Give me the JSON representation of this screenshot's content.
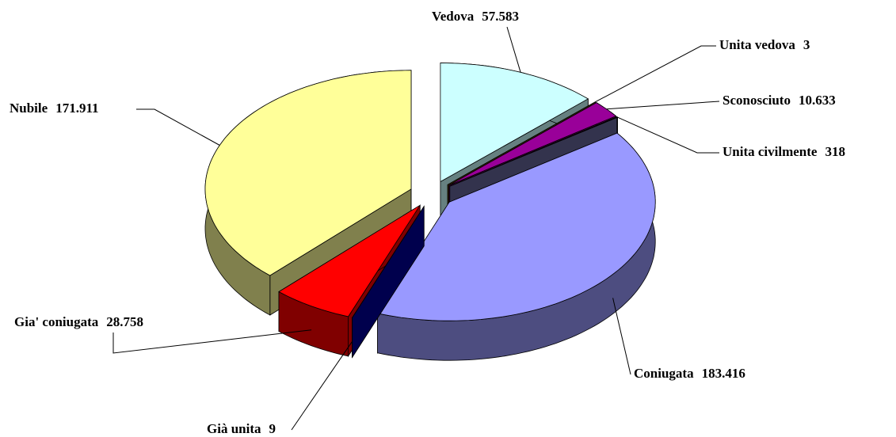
{
  "chart_data": {
    "type": "pie3d",
    "categories": [
      "Vedova",
      "Unita vedova",
      "Sconosciuto",
      "Unita civilmente",
      "Coniugata",
      "Già unita",
      "Gia' coniugata",
      "Nubile"
    ],
    "values": [
      57583,
      3,
      10633,
      318,
      183416,
      9,
      28758,
      171911
    ],
    "value_labels": [
      "57.583",
      "3",
      "10.633",
      "318",
      "183.416",
      "9",
      "28.758",
      "171.911"
    ],
    "colors": [
      "#ccffff",
      "#996600",
      "#990099",
      "#666699",
      "#9999ff",
      "#000099",
      "#ff0000",
      "#ffff99"
    ]
  }
}
